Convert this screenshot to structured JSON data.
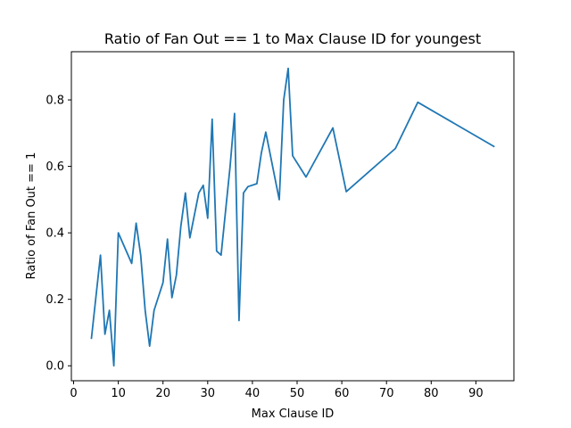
{
  "chart_data": {
    "type": "line",
    "title": "Ratio of Fan Out == 1 to Max Clause ID for youngest",
    "xlabel": "Max Clause ID",
    "ylabel": "Ratio of Fan Out == 1",
    "xlim": [
      -0.5,
      98.5
    ],
    "ylim": [
      -0.045,
      0.945
    ],
    "x_ticks": [
      0,
      10,
      20,
      30,
      40,
      50,
      60,
      70,
      80,
      90
    ],
    "x_tick_labels": [
      "0",
      "10",
      "20",
      "30",
      "40",
      "50",
      "60",
      "70",
      "80",
      "90"
    ],
    "y_ticks": [
      0.0,
      0.2,
      0.4,
      0.6,
      0.8
    ],
    "y_tick_labels": [
      "0.0",
      "0.2",
      "0.4",
      "0.6",
      "0.8"
    ],
    "grid": false,
    "legend": "none",
    "series": [
      {
        "color": "#1f77b4",
        "x": [
          4,
          6,
          7,
          8,
          9,
          10,
          13,
          14,
          15,
          16,
          17,
          18,
          20,
          21,
          22,
          23,
          24,
          25,
          26,
          28,
          29,
          30,
          31,
          32,
          33,
          35,
          36,
          37,
          38,
          39,
          41,
          42,
          43,
          46,
          47,
          48,
          49,
          52,
          58,
          61,
          72,
          77,
          94
        ],
        "y": [
          0.083,
          0.333,
          0.095,
          0.167,
          0.0,
          0.4,
          0.308,
          0.429,
          0.333,
          0.167,
          0.059,
          0.167,
          0.25,
          0.381,
          0.205,
          0.273,
          0.42,
          0.52,
          0.385,
          0.52,
          0.543,
          0.444,
          0.742,
          0.345,
          0.333,
          0.6,
          0.759,
          0.136,
          0.52,
          0.539,
          0.548,
          0.64,
          0.703,
          0.5,
          0.8,
          0.895,
          0.632,
          0.568,
          0.716,
          0.524,
          0.654,
          0.793,
          0.66
        ]
      }
    ]
  }
}
